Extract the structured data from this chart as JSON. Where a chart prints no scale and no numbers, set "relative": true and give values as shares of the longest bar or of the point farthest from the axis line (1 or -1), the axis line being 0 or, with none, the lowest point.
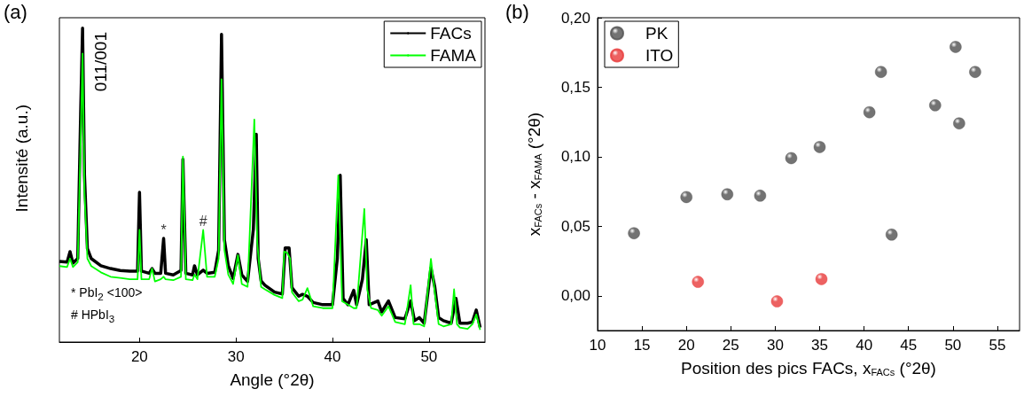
{
  "chart_data": [
    {
      "type": "line",
      "title": "(a)",
      "xlabel": "Angle (°2θ)",
      "ylabel": "Intensité (a.u.)",
      "relative": true,
      "xlim": [
        11.7,
        55.8
      ],
      "xticks": [
        20,
        30,
        40,
        50
      ],
      "grid": false,
      "legend": "top right",
      "marker": "none",
      "line_style": "solid",
      "annotations": [
        "011/001",
        "* PbI$_{2}$ <100>",
        "# HPbI$_{3}$",
        {
          "text": "*",
          "x": 22.5,
          "y": 0.33
        },
        {
          "text": "#",
          "x": 26.6,
          "y": 0.357
        }
      ],
      "series": [
        {
          "name": "FACs",
          "color": "#000000",
          "x": [
            11.7,
            12.5,
            12.8,
            13.1,
            13.6,
            13.9,
            14.1,
            14.3,
            14.6,
            15,
            16,
            17,
            18,
            19,
            19.8,
            20.0,
            20.2,
            21,
            21.3,
            21.6,
            22.2,
            22.5,
            22.7,
            23.5,
            24.3,
            24.5,
            24.8,
            25.5,
            25.7,
            26,
            26.6,
            27,
            27.8,
            28.2,
            28.5,
            28.8,
            29.2,
            29.7,
            30.2,
            30.6,
            31.2,
            31.8,
            32.1,
            32.3,
            32.6,
            33,
            34,
            34.8,
            35.1,
            35.5,
            35.8,
            36.5,
            36.9,
            37.4,
            38,
            39,
            40,
            40.5,
            40.8,
            41.1,
            41.6,
            42.2,
            42.5,
            43.1,
            43.5,
            43.8,
            44.7,
            45.1,
            45.8,
            46.5,
            47.5,
            48.1,
            48.5,
            49,
            49.5,
            50.2,
            50.6,
            51,
            51.5,
            52.3,
            52.8,
            53.2,
            54,
            54.5,
            54.9,
            55.3
          ],
          "values": [
            0.257,
            0.2545,
            0.288,
            0.2515,
            0.266,
            0.725,
            1,
            0.531,
            0.298,
            0.266,
            0.243,
            0.234,
            0.228,
            0.226,
            0.226,
            0.477,
            0.226,
            0.219,
            0.234,
            0.219,
            0.219,
            0.33,
            0.219,
            0.214,
            0.228,
            0.582,
            0.219,
            0.214,
            0.243,
            0.214,
            0.229,
            0.219,
            0.222,
            0.293,
            0.98,
            0.326,
            0.243,
            0.203,
            0.279,
            0.214,
            0.193,
            0.359,
            0.662,
            0.266,
            0.195,
            0.181,
            0.159,
            0.153,
            0.3,
            0.3,
            0.173,
            0.146,
            0.152,
            0.146,
            0.126,
            0.119,
            0.119,
            0.266,
            0.531,
            0.139,
            0.119,
            0.165,
            0.119,
            0.2,
            0.326,
            0.119,
            0.131,
            0.096,
            0.131,
            0.078,
            0.074,
            0.131,
            0.068,
            0.078,
            0.06,
            0.236,
            0.176,
            0.078,
            0.068,
            0.06,
            0.139,
            0.06,
            0.06,
            0.064,
            0.102,
            0.046
          ]
        },
        {
          "name": "FAMA",
          "color": "#00ff00",
          "x": [
            11.7,
            12.5,
            12.8,
            13.1,
            13.6,
            13.9,
            14.1,
            14.3,
            14.6,
            15,
            16,
            17,
            18,
            19,
            19.8,
            20.0,
            20.2,
            21,
            21.3,
            21.6,
            22.2,
            22.5,
            22.7,
            23.5,
            24.3,
            24.5,
            24.8,
            25.5,
            25.7,
            26,
            26.6,
            27,
            27.8,
            28.2,
            28.5,
            28.8,
            29.2,
            29.7,
            30.2,
            30.6,
            31.2,
            31.9,
            32.2,
            32.6,
            33,
            34,
            34.8,
            35.0,
            35.3,
            35.6,
            35.8,
            36.5,
            36.9,
            37.4,
            38,
            39,
            40,
            40.6,
            41,
            41.6,
            42.2,
            42.5,
            43.3,
            43.6,
            44,
            44.7,
            45.1,
            45.8,
            46.5,
            47.5,
            48.1,
            48.4,
            49,
            49.5,
            50.2,
            50.6,
            51,
            51.5,
            52.3,
            52.6,
            52.9,
            53.2,
            54,
            54.5,
            54.9,
            55.3
          ],
          "values": [
            0.242,
            0.239,
            0.266,
            0.239,
            0.2545,
            0.633,
            0.919,
            0.475,
            0.266,
            0.242,
            0.222,
            0.208,
            0.204,
            0.2,
            0.2,
            0.357,
            0.2,
            0.2,
            0.234,
            0.193,
            0.2,
            0.208,
            0.2,
            0.197,
            0.208,
            0.591,
            0.2,
            0.197,
            0.215,
            0.2,
            0.357,
            0.208,
            0.208,
            0.266,
            0.837,
            0.293,
            0.215,
            0.185,
            0.277,
            0.185,
            0.176,
            0.709,
            0.317,
            0.176,
            0.168,
            0.15,
            0.14,
            0.288,
            0.285,
            0.266,
            0.159,
            0.13,
            0.135,
            0.172,
            0.114,
            0.108,
            0.108,
            0.531,
            0.13,
            0.119,
            0.108,
            0.108,
            0.424,
            0.168,
            0.108,
            0.102,
            0.084,
            0.114,
            0.064,
            0.057,
            0.181,
            0.057,
            0.057,
            0.05,
            0.265,
            0.159,
            0.057,
            0.05,
            0.057,
            0.168,
            0.057,
            0.046,
            0.042,
            0.057,
            0.088,
            0.039
          ]
        }
      ]
    },
    {
      "type": "scatter",
      "title": "(b)",
      "xlabel": "Position des pics FACs, x$_{FACs}$ (°2θ)",
      "ylabel": "x$_{FACs}$ - x$_{FAMA}$ (°2θ)",
      "xlim": [
        10,
        57.5
      ],
      "xticks": [
        10,
        15,
        20,
        25,
        30,
        35,
        40,
        45,
        50,
        55
      ],
      "ylim": [
        -0.025,
        0.2
      ],
      "yticks": [
        {
          "value": 0,
          "label": "0,00"
        },
        {
          "value": 0.05,
          "label": "0,05"
        },
        {
          "value": 0.1,
          "label": "0,10"
        },
        {
          "value": 0.15,
          "label": "0,15"
        },
        {
          "value": 0.2,
          "label": "0,20"
        }
      ],
      "grid": false,
      "legend": "top left",
      "marker": "circle",
      "series": [
        {
          "name": "PK",
          "color": "#505050",
          "x": [
            14.1,
            20,
            24.6,
            28.3,
            31.8,
            35,
            40.6,
            41.9,
            43.1,
            48,
            50.3,
            50.7,
            52.5
          ],
          "values": [
            0.045,
            0.071,
            0.073,
            0.072,
            0.099,
            0.107,
            0.132,
            0.161,
            0.044,
            0.137,
            0.179,
            0.124,
            0.161
          ]
        },
        {
          "name": "ITO",
          "color": "#e83a3a",
          "x": [
            21.3,
            30.2,
            35.2
          ],
          "values": [
            0.01,
            -0.004,
            0.012
          ]
        }
      ]
    }
  ]
}
